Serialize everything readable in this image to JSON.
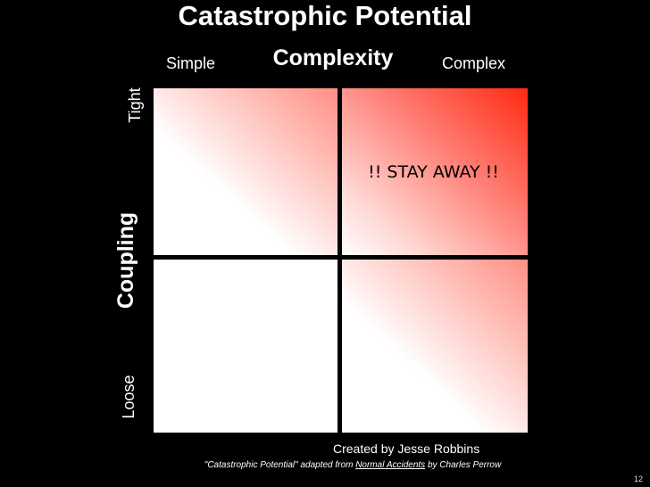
{
  "slide": {
    "title": "Catastrophic Potential",
    "columns": {
      "heading": "Complexity",
      "left_label": "Simple",
      "right_label": "Complex"
    },
    "rows": {
      "heading": "Coupling",
      "top_label": "Tight",
      "bottom_label": "Loose"
    },
    "quadrants": {
      "top_right_text": "!! STAY AWAY !!"
    },
    "credit": "Created by Jesse Robbins",
    "source": {
      "prefix": "\"Catastrophic Potential\" adapted from ",
      "book": "Normal Accidents",
      "suffix": " by Charles Perrow"
    },
    "page_number": "12",
    "colors": {
      "background": "#000000",
      "danger_red": "#ff2a10",
      "grid_line": "#000000"
    }
  }
}
